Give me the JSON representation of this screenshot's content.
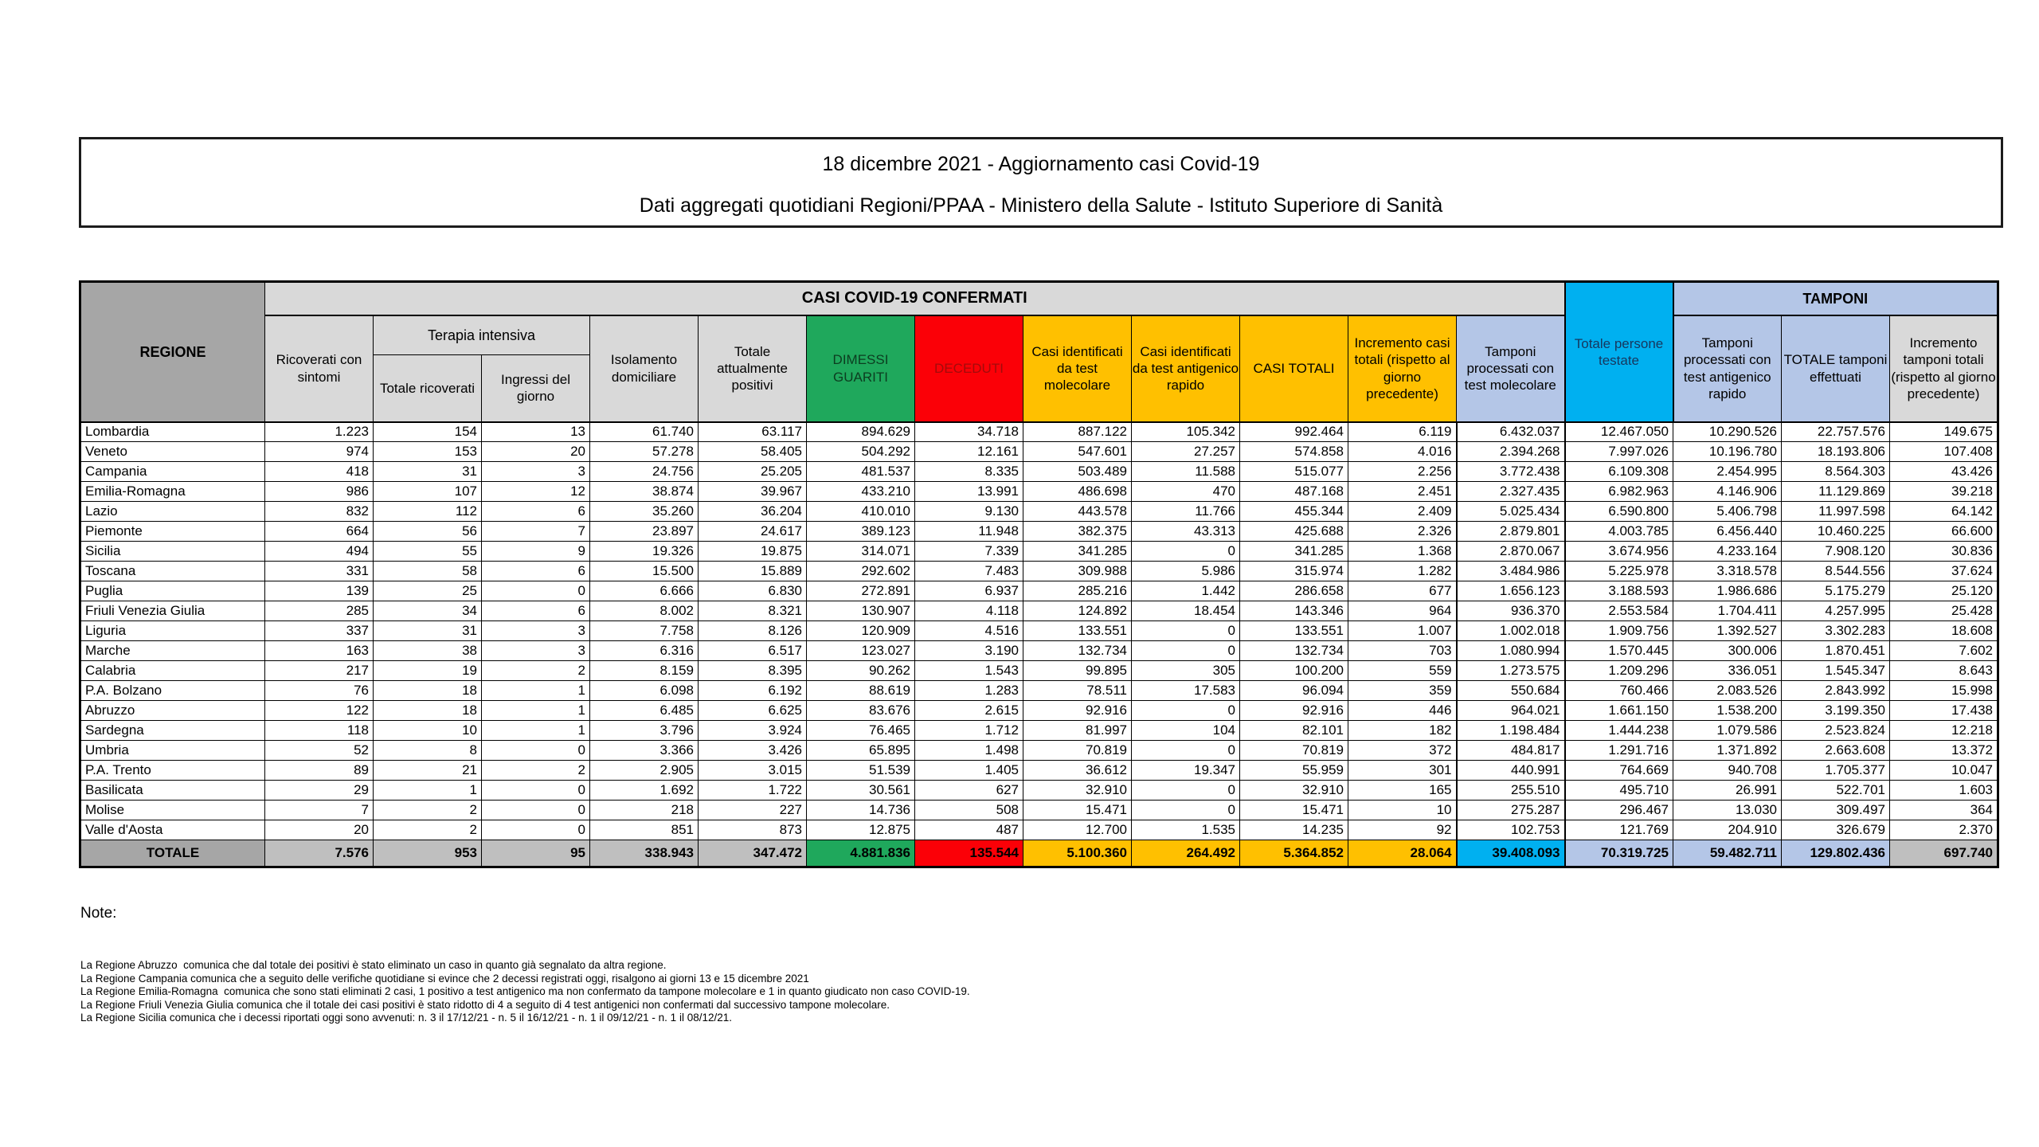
{
  "title": {
    "line1": "18 dicembre 2021 - Aggiornamento casi Covid-19",
    "line2": "Dati aggregati quotidiani Regioni/PPAA - Ministero della Salute - Istituto Superiore di Sanità"
  },
  "table": {
    "group_headers": {
      "regione": "REGIONE",
      "casi_confermati": "CASI COVID-19 CONFERMATI",
      "terapia_intensiva": "Terapia intensiva",
      "totale_persone_testate": "Totale persone testate",
      "tamponi": "TAMPONI"
    },
    "column_headers": [
      "Ricoverati con sintomi",
      "Totale ricoverati",
      "Ingressi del giorno",
      "Isolamento domiciliare",
      "Totale attualmente positivi",
      "DIMESSI GUARITI",
      "DECEDUTI",
      "Casi identificati da test molecolare",
      "Casi identificati da test antigenico rapido",
      "CASI TOTALI",
      "Incremento casi totali (rispetto al giorno precedente)",
      "Tamponi processati con test molecolare",
      "Tamponi processati con test antigenico rapido",
      "TOTALE tamponi effettuati",
      "Incremento tamponi totali (rispetto al giorno precedente)"
    ],
    "rows": [
      {
        "region": "Lombardia",
        "values": [
          "1.223",
          "154",
          "13",
          "61.740",
          "63.117",
          "894.629",
          "34.718",
          "887.122",
          "105.342",
          "992.464",
          "6.119",
          "6.432.037",
          "12.467.050",
          "10.290.526",
          "22.757.576",
          "149.675"
        ]
      },
      {
        "region": "Veneto",
        "values": [
          "974",
          "153",
          "20",
          "57.278",
          "58.405",
          "504.292",
          "12.161",
          "547.601",
          "27.257",
          "574.858",
          "4.016",
          "2.394.268",
          "7.997.026",
          "10.196.780",
          "18.193.806",
          "107.408"
        ]
      },
      {
        "region": "Campania",
        "values": [
          "418",
          "31",
          "3",
          "24.756",
          "25.205",
          "481.537",
          "8.335",
          "503.489",
          "11.588",
          "515.077",
          "2.256",
          "3.772.438",
          "6.109.308",
          "2.454.995",
          "8.564.303",
          "43.426"
        ]
      },
      {
        "region": "Emilia-Romagna",
        "values": [
          "986",
          "107",
          "12",
          "38.874",
          "39.967",
          "433.210",
          "13.991",
          "486.698",
          "470",
          "487.168",
          "2.451",
          "2.327.435",
          "6.982.963",
          "4.146.906",
          "11.129.869",
          "39.218"
        ]
      },
      {
        "region": "Lazio",
        "values": [
          "832",
          "112",
          "6",
          "35.260",
          "36.204",
          "410.010",
          "9.130",
          "443.578",
          "11.766",
          "455.344",
          "2.409",
          "5.025.434",
          "6.590.800",
          "5.406.798",
          "11.997.598",
          "64.142"
        ]
      },
      {
        "region": "Piemonte",
        "values": [
          "664",
          "56",
          "7",
          "23.897",
          "24.617",
          "389.123",
          "11.948",
          "382.375",
          "43.313",
          "425.688",
          "2.326",
          "2.879.801",
          "4.003.785",
          "6.456.440",
          "10.460.225",
          "66.600"
        ]
      },
      {
        "region": "Sicilia",
        "values": [
          "494",
          "55",
          "9",
          "19.326",
          "19.875",
          "314.071",
          "7.339",
          "341.285",
          "0",
          "341.285",
          "1.368",
          "2.870.067",
          "3.674.956",
          "4.233.164",
          "7.908.120",
          "30.836"
        ]
      },
      {
        "region": "Toscana",
        "values": [
          "331",
          "58",
          "6",
          "15.500",
          "15.889",
          "292.602",
          "7.483",
          "309.988",
          "5.986",
          "315.974",
          "1.282",
          "3.484.986",
          "5.225.978",
          "3.318.578",
          "8.544.556",
          "37.624"
        ]
      },
      {
        "region": "Puglia",
        "values": [
          "139",
          "25",
          "0",
          "6.666",
          "6.830",
          "272.891",
          "6.937",
          "285.216",
          "1.442",
          "286.658",
          "677",
          "1.656.123",
          "3.188.593",
          "1.986.686",
          "5.175.279",
          "25.120"
        ]
      },
      {
        "region": "Friuli Venezia Giulia",
        "values": [
          "285",
          "34",
          "6",
          "8.002",
          "8.321",
          "130.907",
          "4.118",
          "124.892",
          "18.454",
          "143.346",
          "964",
          "936.370",
          "2.553.584",
          "1.704.411",
          "4.257.995",
          "25.428"
        ]
      },
      {
        "region": "Liguria",
        "values": [
          "337",
          "31",
          "3",
          "7.758",
          "8.126",
          "120.909",
          "4.516",
          "133.551",
          "0",
          "133.551",
          "1.007",
          "1.002.018",
          "1.909.756",
          "1.392.527",
          "3.302.283",
          "18.608"
        ]
      },
      {
        "region": "Marche",
        "values": [
          "163",
          "38",
          "3",
          "6.316",
          "6.517",
          "123.027",
          "3.190",
          "132.734",
          "0",
          "132.734",
          "703",
          "1.080.994",
          "1.570.445",
          "300.006",
          "1.870.451",
          "7.602"
        ]
      },
      {
        "region": "Calabria",
        "values": [
          "217",
          "19",
          "2",
          "8.159",
          "8.395",
          "90.262",
          "1.543",
          "99.895",
          "305",
          "100.200",
          "559",
          "1.273.575",
          "1.209.296",
          "336.051",
          "1.545.347",
          "8.643"
        ]
      },
      {
        "region": "P.A. Bolzano",
        "values": [
          "76",
          "18",
          "1",
          "6.098",
          "6.192",
          "88.619",
          "1.283",
          "78.511",
          "17.583",
          "96.094",
          "359",
          "550.684",
          "760.466",
          "2.083.526",
          "2.843.992",
          "15.998"
        ]
      },
      {
        "region": "Abruzzo",
        "values": [
          "122",
          "18",
          "1",
          "6.485",
          "6.625",
          "83.676",
          "2.615",
          "92.916",
          "0",
          "92.916",
          "446",
          "964.021",
          "1.661.150",
          "1.538.200",
          "3.199.350",
          "17.438"
        ]
      },
      {
        "region": "Sardegna",
        "values": [
          "118",
          "10",
          "1",
          "3.796",
          "3.924",
          "76.465",
          "1.712",
          "81.997",
          "104",
          "82.101",
          "182",
          "1.198.484",
          "1.444.238",
          "1.079.586",
          "2.523.824",
          "12.218"
        ]
      },
      {
        "region": "Umbria",
        "values": [
          "52",
          "8",
          "0",
          "3.366",
          "3.426",
          "65.895",
          "1.498",
          "70.819",
          "0",
          "70.819",
          "372",
          "484.817",
          "1.291.716",
          "1.371.892",
          "2.663.608",
          "13.372"
        ]
      },
      {
        "region": "P.A. Trento",
        "values": [
          "89",
          "21",
          "2",
          "2.905",
          "3.015",
          "51.539",
          "1.405",
          "36.612",
          "19.347",
          "55.959",
          "301",
          "440.991",
          "764.669",
          "940.708",
          "1.705.377",
          "10.047"
        ]
      },
      {
        "region": "Basilicata",
        "values": [
          "29",
          "1",
          "0",
          "1.692",
          "1.722",
          "30.561",
          "627",
          "32.910",
          "0",
          "32.910",
          "165",
          "255.510",
          "495.710",
          "26.991",
          "522.701",
          "1.603"
        ]
      },
      {
        "region": "Molise",
        "values": [
          "7",
          "2",
          "0",
          "218",
          "227",
          "14.736",
          "508",
          "15.471",
          "0",
          "15.471",
          "10",
          "275.287",
          "296.467",
          "13.030",
          "309.497",
          "364"
        ]
      },
      {
        "region": "Valle d'Aosta",
        "values": [
          "20",
          "2",
          "0",
          "851",
          "873",
          "12.875",
          "487",
          "12.700",
          "1.535",
          "14.235",
          "92",
          "102.753",
          "121.769",
          "204.910",
          "326.679",
          "2.370"
        ]
      }
    ],
    "total_row": {
      "region": "TOTALE",
      "values": [
        "7.576",
        "953",
        "95",
        "338.943",
        "347.472",
        "4.881.836",
        "135.544",
        "5.100.360",
        "264.492",
        "5.364.852",
        "28.064",
        "39.408.093",
        "70.319.725",
        "59.482.711",
        "129.802.436",
        "697.740"
      ]
    }
  },
  "notes": {
    "heading": "Note:",
    "items": [
      "La Regione Abruzzo  comunica che dal totale dei positivi è stato eliminato un caso in quanto già segnalato da altra regione.",
      "La Regione Campania comunica che a seguito delle verifiche quotidiane si evince che 2 decessi registrati oggi, risalgono ai giorni 13 e 15 dicembre 2021",
      "La Regione Emilia-Romagna  comunica che sono stati eliminati 2 casi, 1 positivo a test antigenico ma non confermato da tampone molecolare e 1 in quanto giudicato non caso COVID-19.",
      "La Regione Friuli Venezia Giulia comunica che il totale dei casi positivi è stato ridotto di 4 a seguito di 4 test antigenici non confermati dal successivo tampone molecolare.",
      "La Regione Sicilia comunica che i decessi riportati oggi sono avvenuti: n. 3 il 17/12/21 - n. 5 il 16/12/21 - n. 1 il 09/12/21 - n. 1 il 08/12/21."
    ]
  },
  "colors": {
    "green": "#1FA85C",
    "red": "#FB0007",
    "gold": "#FFC000",
    "cyan": "#00B0F0",
    "light_blue": "#B4C6E7",
    "header_gray": "#D9D9D9",
    "dark_gray": "#A6A6A6",
    "total_gray": "#BFBFBF"
  }
}
